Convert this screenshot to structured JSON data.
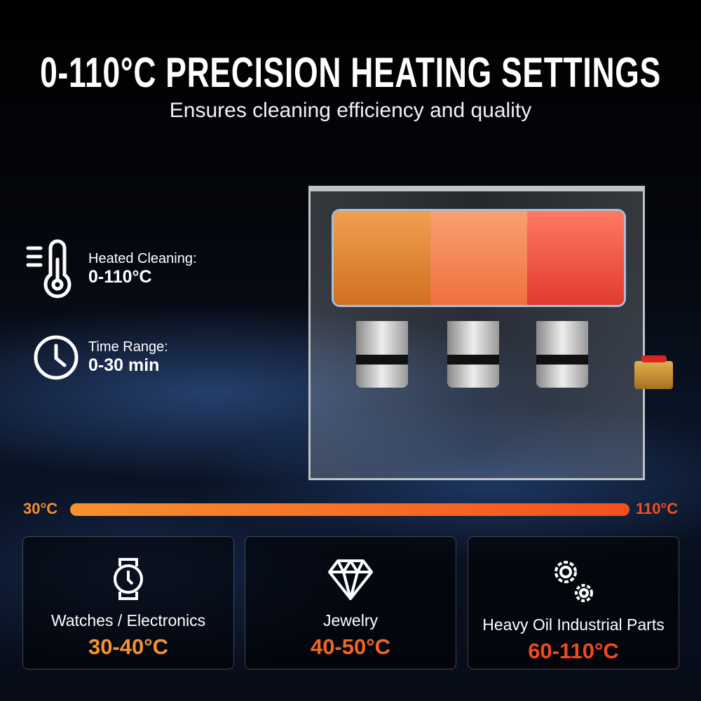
{
  "header": {
    "title": "0-110°C PRECISION HEATING SETTINGS",
    "subtitle": "Ensures cleaning efficiency and quality"
  },
  "features": [
    {
      "icon": "thermometer-icon",
      "label": "Heated Cleaning:",
      "value": "0-110°C"
    },
    {
      "icon": "clock-icon",
      "label": "Time Range:",
      "value": "0-30 min"
    }
  ],
  "scale": {
    "min_label": "30°C",
    "max_label": "110°C",
    "colors": {
      "start": "#f7902e",
      "end": "#f4501e"
    }
  },
  "cards": [
    {
      "icon": "watch-icon",
      "name": "Watches / Electronics",
      "range": "30-40°C",
      "color": "#f7922f"
    },
    {
      "icon": "diamond-icon",
      "name": "Jewelry",
      "range": "40-50°C",
      "color": "#f4661f"
    },
    {
      "icon": "gears-icon",
      "name": "Heavy Oil Industrial Parts",
      "range": "60-110°C",
      "color": "#f24a1e"
    }
  ]
}
